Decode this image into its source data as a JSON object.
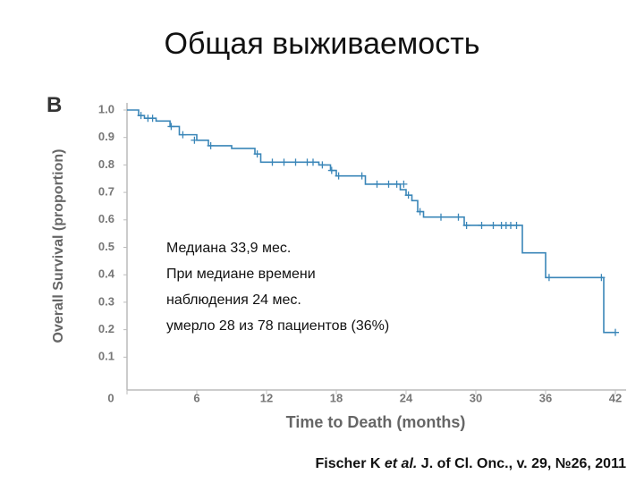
{
  "chart_data": {
    "type": "step",
    "title": "Общая выживаемость",
    "panel_label": "B",
    "y_label": "Overall Survival (proportion)",
    "x_label": "Time to Death (months)",
    "annotation": [
      "Медиана 33,9 мес.",
      "При медиане времени",
      "наблюдения 24 мес.",
      "умерло 28 из 78 пациентов (36%)"
    ],
    "citation": [
      "Fischer K ",
      "et al.",
      " J. of Cl. Onc., v. 29, №26, 2011"
    ],
    "xlim": [
      0,
      42
    ],
    "ylim": [
      0,
      1.0
    ],
    "xticks": [
      0,
      6,
      12,
      18,
      24,
      30,
      36,
      42
    ],
    "yticks": [
      {
        "value": 0.1,
        "label": "0.1"
      },
      0.2,
      0.3,
      0.4,
      0.5,
      0.6,
      0.7,
      0.8,
      0.9,
      {
        "value": 1,
        "label": "1.0"
      }
    ],
    "series": [
      {
        "color": "#3a86b8",
        "x": [
          0,
          1,
          1.5,
          2.5,
          3.7,
          4.5,
          6,
          7,
          9,
          11,
          11.5,
          16.5,
          17.5,
          18,
          20.5,
          23.5,
          24,
          24.5,
          25,
          25.5,
          29,
          34,
          36,
          41,
          42
        ],
        "values": [
          1.0,
          0.98,
          0.97,
          0.96,
          0.94,
          0.91,
          0.89,
          0.87,
          0.86,
          0.84,
          0.81,
          0.8,
          0.78,
          0.76,
          0.73,
          0.71,
          0.69,
          0.67,
          0.63,
          0.61,
          0.58,
          0.48,
          0.39,
          0.19,
          0.19
        ]
      }
    ],
    "censored": {
      "x": [
        1.2,
        1.8,
        2.2,
        3.8,
        4.8,
        5.8,
        7.2,
        11.2,
        12.5,
        13.5,
        14.5,
        15.5,
        16,
        16.8,
        17.6,
        18.2,
        20.2,
        21.5,
        22.5,
        23.2,
        23.8,
        24.2,
        25.2,
        27,
        28.5,
        29.2,
        30.5,
        31.5,
        32.2,
        32.6,
        33,
        33.5,
        36.3,
        40.8,
        42
      ],
      "values": [
        0.98,
        0.97,
        0.97,
        0.94,
        0.91,
        0.89,
        0.87,
        0.84,
        0.81,
        0.81,
        0.81,
        0.81,
        0.81,
        0.8,
        0.78,
        0.76,
        0.76,
        0.73,
        0.73,
        0.73,
        0.73,
        0.69,
        0.63,
        0.61,
        0.61,
        0.58,
        0.58,
        0.58,
        0.58,
        0.58,
        0.58,
        0.58,
        0.39,
        0.39,
        0.19
      ]
    }
  }
}
